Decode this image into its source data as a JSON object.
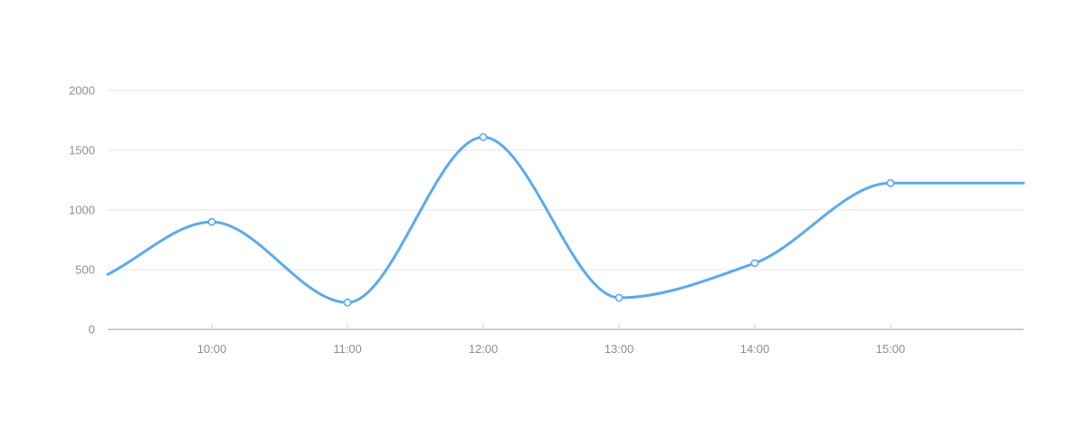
{
  "chart_data": {
    "type": "line",
    "smooth": true,
    "categories": [
      "10:00",
      "11:00",
      "12:00",
      "13:00",
      "14:00",
      "15:00"
    ],
    "series": [
      {
        "values": [
          900,
          225,
          1610,
          265,
          555,
          1225
        ],
        "lead_in": 460,
        "tail": 1225
      }
    ],
    "ylim": [
      0,
      2000
    ],
    "yticks": [
      "0",
      "500",
      "1000",
      "1500",
      "2000"
    ],
    "ytick_values": [
      0,
      500,
      1000,
      1500,
      2000
    ],
    "grid": true,
    "line_color": "#5aabee",
    "grid_color": "#e3e6ea",
    "axis_color": "#b9bfc7",
    "tick_label_color": "#8a8f99"
  }
}
